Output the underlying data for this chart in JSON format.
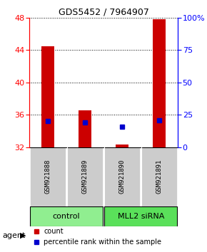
{
  "title": "GDS5452 / 7964907",
  "samples": [
    "GSM921888",
    "GSM921889",
    "GSM921890",
    "GSM921891"
  ],
  "counts": [
    44.5,
    36.5,
    32.3,
    47.8
  ],
  "percentiles_pct": [
    20.0,
    19.0,
    16.0,
    20.5
  ],
  "ymin": 32,
  "ymax": 48,
  "yticks_left": [
    32,
    36,
    40,
    44,
    48
  ],
  "yticks_right": [
    0,
    25,
    50,
    75,
    100
  ],
  "groups": [
    {
      "label": "control",
      "samples": [
        0,
        1
      ],
      "color": "#90EE90"
    },
    {
      "label": "MLL2 siRNA",
      "samples": [
        2,
        3
      ],
      "color": "#5AE05A"
    }
  ],
  "bar_color": "#CC0000",
  "dot_color": "#0000CC",
  "bar_width": 0.35,
  "legend_red_label": "count",
  "legend_blue_label": "percentile rank within the sample"
}
